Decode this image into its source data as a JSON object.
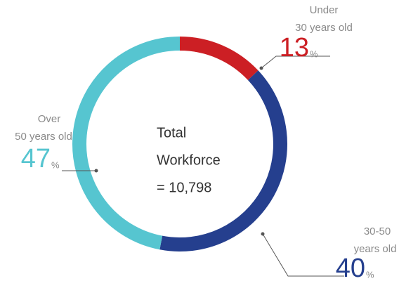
{
  "chart_data": {
    "type": "donut",
    "categories": [
      [
        "Under",
        "30 years old"
      ],
      [
        "30-50",
        "years old"
      ],
      [
        "Over",
        "50 years old"
      ]
    ],
    "values": [
      13,
      40,
      47
    ],
    "unit": "%",
    "colors": [
      "#cc1f24",
      "#253f8e",
      "#56c5d0"
    ],
    "center_text": [
      "Total",
      "Workforce",
      "= 10,798"
    ]
  }
}
